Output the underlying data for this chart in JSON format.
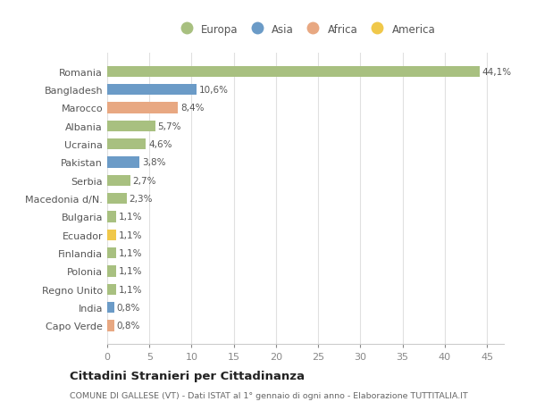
{
  "countries": [
    "Romania",
    "Bangladesh",
    "Marocco",
    "Albania",
    "Ucraina",
    "Pakistan",
    "Serbia",
    "Macedonia d/N.",
    "Bulgaria",
    "Ecuador",
    "Finlandia",
    "Polonia",
    "Regno Unito",
    "India",
    "Capo Verde"
  ],
  "values": [
    44.1,
    10.6,
    8.4,
    5.7,
    4.6,
    3.8,
    2.7,
    2.3,
    1.1,
    1.1,
    1.1,
    1.1,
    1.1,
    0.8,
    0.8
  ],
  "labels": [
    "44,1%",
    "10,6%",
    "8,4%",
    "5,7%",
    "4,6%",
    "3,8%",
    "2,7%",
    "2,3%",
    "1,1%",
    "1,1%",
    "1,1%",
    "1,1%",
    "1,1%",
    "0,8%",
    "0,8%"
  ],
  "continent": [
    "Europa",
    "Asia",
    "Africa",
    "Europa",
    "Europa",
    "Asia",
    "Europa",
    "Europa",
    "Europa",
    "America",
    "Europa",
    "Europa",
    "Europa",
    "Asia",
    "Africa"
  ],
  "colors": {
    "Europa": "#a8c080",
    "Asia": "#6b9bc7",
    "Africa": "#e8a882",
    "America": "#f0c84a"
  },
  "title": "Cittadini Stranieri per Cittadinanza",
  "subtitle": "COMUNE DI GALLESE (VT) - Dati ISTAT al 1° gennaio di ogni anno - Elaborazione TUTTITALIA.IT",
  "xlim": [
    0,
    47
  ],
  "xticks": [
    0,
    5,
    10,
    15,
    20,
    25,
    30,
    35,
    40,
    45
  ],
  "background_color": "#ffffff",
  "grid_color": "#e0e0e0"
}
